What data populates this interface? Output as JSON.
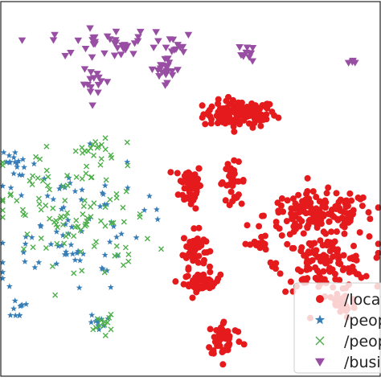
{
  "chart_data": {
    "type": "scatter",
    "title": "",
    "xlabel": "",
    "ylabel": "",
    "grid": false,
    "xticks": false,
    "yticks": false,
    "legend_placement": "bottom-right",
    "series": [
      {
        "name": "/location",
        "marker": "circle",
        "color": "#e41a1c",
        "clusters": [
          {
            "cx": 0.63,
            "cy": 0.7,
            "rx": 0.08,
            "ry": 0.03,
            "n": 120
          },
          {
            "cx": 0.5,
            "cy": 0.51,
            "rx": 0.025,
            "ry": 0.05,
            "n": 60
          },
          {
            "cx": 0.51,
            "cy": 0.34,
            "rx": 0.025,
            "ry": 0.04,
            "n": 50
          },
          {
            "cx": 0.53,
            "cy": 0.25,
            "rx": 0.04,
            "ry": 0.02,
            "n": 50
          },
          {
            "cx": 0.61,
            "cy": 0.52,
            "rx": 0.03,
            "ry": 0.04,
            "n": 30
          },
          {
            "cx": 0.84,
            "cy": 0.43,
            "rx": 0.12,
            "ry": 0.05,
            "n": 160
          },
          {
            "cx": 0.85,
            "cy": 0.3,
            "rx": 0.1,
            "ry": 0.06,
            "n": 130
          },
          {
            "cx": 0.9,
            "cy": 0.19,
            "rx": 0.03,
            "ry": 0.03,
            "n": 30
          },
          {
            "cx": 0.59,
            "cy": 0.1,
            "rx": 0.04,
            "ry": 0.04,
            "n": 45
          },
          {
            "cx": 0.68,
            "cy": 0.35,
            "rx": 0.02,
            "ry": 0.02,
            "n": 15
          }
        ]
      },
      {
        "name": "/people/person",
        "marker": "star",
        "color": "#377eb8",
        "clusters": [
          {
            "cx": 0.17,
            "cy": 0.41,
            "rx": 0.17,
            "ry": 0.15,
            "n": 80
          },
          {
            "cx": 0.03,
            "cy": 0.57,
            "rx": 0.03,
            "ry": 0.03,
            "n": 15
          },
          {
            "cx": 0.26,
            "cy": 0.14,
            "rx": 0.02,
            "ry": 0.02,
            "n": 10
          },
          {
            "cx": 0.04,
            "cy": 0.18,
            "rx": 0.02,
            "ry": 0.02,
            "n": 10
          }
        ]
      },
      {
        "name": "/people/person/nationality",
        "marker": "x",
        "color": "#4daf4a",
        "clusters": [
          {
            "cx": 0.19,
            "cy": 0.43,
            "rx": 0.17,
            "ry": 0.16,
            "n": 110
          },
          {
            "cx": 0.27,
            "cy": 0.14,
            "rx": 0.02,
            "ry": 0.02,
            "n": 12
          },
          {
            "cx": 0.24,
            "cy": 0.6,
            "rx": 0.04,
            "ry": 0.03,
            "n": 15
          }
        ]
      },
      {
        "name": "/business/company",
        "marker": "triangle_down",
        "color": "#984ea3",
        "clusters": [
          {
            "cx": 0.29,
            "cy": 0.89,
            "rx": 0.13,
            "ry": 0.03,
            "n": 40
          },
          {
            "cx": 0.43,
            "cy": 0.82,
            "rx": 0.04,
            "ry": 0.03,
            "n": 20
          },
          {
            "cx": 0.25,
            "cy": 0.78,
            "rx": 0.03,
            "ry": 0.03,
            "n": 15
          },
          {
            "cx": 0.45,
            "cy": 0.88,
            "rx": 0.03,
            "ry": 0.02,
            "n": 10
          },
          {
            "cx": 0.65,
            "cy": 0.86,
            "rx": 0.02,
            "ry": 0.02,
            "n": 10
          },
          {
            "cx": 0.93,
            "cy": 0.84,
            "rx": 0.01,
            "ry": 0.01,
            "n": 4
          }
        ]
      }
    ]
  }
}
